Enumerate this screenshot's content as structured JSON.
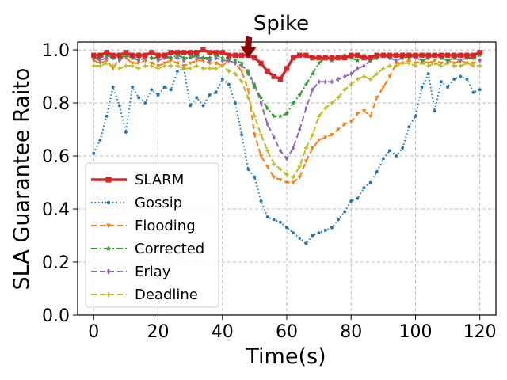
{
  "chart_data": {
    "type": "line",
    "title": "",
    "xlabel": "Time(s)",
    "ylabel": "SLA Guarantee Raito",
    "xlim": [
      -5,
      125
    ],
    "ylim": [
      0.0,
      1.03
    ],
    "xticks": [
      0,
      20,
      40,
      60,
      80,
      100,
      120
    ],
    "yticks": [
      0.0,
      0.2,
      0.4,
      0.6,
      0.8,
      1.0
    ],
    "xtick_labels": [
      "0",
      "20",
      "40",
      "60",
      "80",
      "100",
      "120"
    ],
    "ytick_labels": [
      "0.0",
      "0.2",
      "0.4",
      "0.6",
      "0.8",
      "1.0"
    ],
    "grid": true,
    "legend_position": "center-left",
    "annotation": {
      "text": "Spike",
      "x": 48,
      "y": 0.975
    },
    "series": [
      {
        "name": "SLARM",
        "color": "#d62728",
        "marker": "square",
        "dash": "solid",
        "x": [
          0,
          2,
          4,
          6,
          8,
          10,
          12,
          14,
          16,
          18,
          20,
          22,
          24,
          26,
          28,
          30,
          32,
          34,
          36,
          38,
          40,
          42,
          44,
          46,
          48,
          50,
          52,
          54,
          56,
          58,
          60,
          62,
          64,
          66,
          68,
          70,
          72,
          74,
          76,
          78,
          80,
          82,
          84,
          86,
          88,
          90,
          92,
          94,
          96,
          98,
          100,
          102,
          104,
          106,
          108,
          110,
          112,
          114,
          116,
          118,
          120
        ],
        "values": [
          0.98,
          0.98,
          0.99,
          0.98,
          0.98,
          0.99,
          0.98,
          0.98,
          0.98,
          0.99,
          0.98,
          0.98,
          0.99,
          0.99,
          0.99,
          0.99,
          0.99,
          1.0,
          0.99,
          0.99,
          0.99,
          0.98,
          0.98,
          0.98,
          0.98,
          0.97,
          0.95,
          0.92,
          0.9,
          0.89,
          0.93,
          0.97,
          0.98,
          0.98,
          0.97,
          0.97,
          0.97,
          0.97,
          0.97,
          0.97,
          0.98,
          0.98,
          0.97,
          0.97,
          0.98,
          0.98,
          0.98,
          0.98,
          0.98,
          0.98,
          0.98,
          0.98,
          0.98,
          0.98,
          0.98,
          0.98,
          0.98,
          0.98,
          0.98,
          0.98,
          0.99
        ]
      },
      {
        "name": "Gossip",
        "color": "#1f77b4",
        "marker": "dot",
        "dash": "dotted",
        "x": [
          0,
          2,
          4,
          6,
          8,
          10,
          12,
          14,
          16,
          18,
          20,
          22,
          24,
          26,
          28,
          30,
          32,
          34,
          36,
          38,
          40,
          42,
          44,
          46,
          48,
          50,
          52,
          54,
          56,
          58,
          60,
          62,
          64,
          66,
          68,
          70,
          72,
          74,
          76,
          78,
          80,
          82,
          84,
          86,
          88,
          90,
          92,
          94,
          96,
          98,
          100,
          102,
          104,
          106,
          108,
          110,
          112,
          114,
          116,
          118,
          120
        ],
        "values": [
          0.61,
          0.66,
          0.75,
          0.86,
          0.79,
          0.69,
          0.86,
          0.82,
          0.8,
          0.85,
          0.83,
          0.86,
          0.85,
          0.92,
          0.93,
          0.79,
          0.82,
          0.79,
          0.83,
          0.84,
          0.89,
          0.87,
          0.8,
          0.68,
          0.55,
          0.52,
          0.43,
          0.37,
          0.36,
          0.35,
          0.33,
          0.31,
          0.29,
          0.27,
          0.3,
          0.31,
          0.32,
          0.33,
          0.36,
          0.39,
          0.43,
          0.44,
          0.48,
          0.5,
          0.54,
          0.59,
          0.62,
          0.6,
          0.63,
          0.71,
          0.75,
          0.86,
          0.91,
          0.77,
          0.88,
          0.86,
          0.89,
          0.9,
          0.89,
          0.84,
          0.85
        ]
      },
      {
        "name": "Flooding",
        "color": "#ff7f0e",
        "marker": "triangle-down",
        "dash": "dashed",
        "x": [
          0,
          2,
          4,
          6,
          8,
          10,
          12,
          14,
          16,
          18,
          20,
          22,
          24,
          26,
          28,
          30,
          32,
          34,
          36,
          38,
          40,
          42,
          44,
          46,
          48,
          50,
          52,
          54,
          56,
          58,
          60,
          62,
          64,
          66,
          68,
          70,
          72,
          74,
          76,
          78,
          80,
          82,
          84,
          86,
          88,
          90,
          92,
          94,
          96,
          98,
          100,
          102,
          104,
          106,
          108,
          110,
          112,
          114,
          116,
          118,
          120
        ],
        "values": [
          0.96,
          0.95,
          0.96,
          0.93,
          0.97,
          0.97,
          0.95,
          0.95,
          0.96,
          0.95,
          0.94,
          0.95,
          0.96,
          0.95,
          0.94,
          0.95,
          0.96,
          0.96,
          0.95,
          0.95,
          0.94,
          0.96,
          0.95,
          0.92,
          0.85,
          0.68,
          0.6,
          0.56,
          0.52,
          0.51,
          0.5,
          0.5,
          0.52,
          0.58,
          0.63,
          0.66,
          0.67,
          0.68,
          0.7,
          0.72,
          0.73,
          0.76,
          0.77,
          0.75,
          0.82,
          0.86,
          0.9,
          0.95,
          0.95,
          0.96,
          0.95,
          0.96,
          0.95,
          0.96,
          0.95,
          0.96,
          0.95,
          0.96,
          0.95,
          0.95,
          0.96
        ]
      },
      {
        "name": "Corrected",
        "color": "#2ca02c",
        "marker": "star",
        "dash": "dashdot",
        "x": [
          0,
          2,
          4,
          6,
          8,
          10,
          12,
          14,
          16,
          18,
          20,
          22,
          24,
          26,
          28,
          30,
          32,
          34,
          36,
          38,
          40,
          42,
          44,
          46,
          48,
          50,
          52,
          54,
          56,
          58,
          60,
          62,
          64,
          66,
          68,
          70,
          72,
          74,
          76,
          78,
          80,
          82,
          84,
          86,
          88,
          90,
          92,
          94,
          96,
          98,
          100,
          102,
          104,
          106,
          108,
          110,
          112,
          114,
          116,
          118,
          120
        ],
        "values": [
          0.97,
          0.97,
          0.98,
          0.97,
          0.97,
          0.98,
          0.97,
          0.97,
          0.98,
          0.97,
          0.97,
          0.98,
          0.97,
          0.98,
          0.97,
          0.97,
          0.98,
          0.97,
          0.97,
          0.98,
          0.97,
          0.97,
          0.96,
          0.95,
          0.91,
          0.86,
          0.82,
          0.78,
          0.75,
          0.75,
          0.76,
          0.8,
          0.83,
          0.87,
          0.91,
          0.95,
          0.97,
          0.96,
          0.97,
          0.98,
          0.97,
          0.96,
          0.98,
          0.96,
          0.97,
          0.98,
          0.97,
          0.98,
          0.97,
          0.97,
          0.98,
          0.96,
          0.97,
          0.98,
          0.97,
          0.96,
          0.97,
          0.98,
          0.97,
          0.97,
          0.98
        ]
      },
      {
        "name": "Erlay",
        "color": "#9467bd",
        "marker": "diamond",
        "dash": "dashed",
        "x": [
          0,
          2,
          4,
          6,
          8,
          10,
          12,
          14,
          16,
          18,
          20,
          22,
          24,
          26,
          28,
          30,
          32,
          34,
          36,
          38,
          40,
          42,
          44,
          46,
          48,
          50,
          52,
          54,
          56,
          58,
          60,
          62,
          64,
          66,
          68,
          70,
          72,
          74,
          76,
          78,
          80,
          82,
          84,
          86,
          88,
          90,
          92,
          94,
          96,
          98,
          100,
          102,
          104,
          106,
          108,
          110,
          112,
          114,
          116,
          118,
          120
        ],
        "values": [
          0.97,
          0.96,
          0.97,
          0.97,
          0.96,
          0.98,
          0.97,
          0.96,
          0.97,
          0.97,
          0.96,
          0.97,
          0.97,
          0.97,
          0.96,
          0.98,
          0.97,
          0.97,
          0.96,
          0.97,
          0.96,
          0.96,
          0.95,
          0.94,
          0.92,
          0.87,
          0.8,
          0.72,
          0.67,
          0.62,
          0.59,
          0.63,
          0.7,
          0.78,
          0.85,
          0.88,
          0.88,
          0.88,
          0.89,
          0.9,
          0.91,
          0.93,
          0.94,
          0.96,
          0.97,
          0.98,
          0.97,
          0.96,
          0.97,
          0.98,
          0.97,
          0.96,
          0.97,
          0.98,
          0.97,
          0.96,
          0.97,
          0.96,
          0.97,
          0.97,
          0.96
        ]
      },
      {
        "name": "Deadline",
        "color": "#bcbd22",
        "marker": "plus",
        "dash": "dashed",
        "x": [
          0,
          2,
          4,
          6,
          8,
          10,
          12,
          14,
          16,
          18,
          20,
          22,
          24,
          26,
          28,
          30,
          32,
          34,
          36,
          38,
          40,
          42,
          44,
          46,
          48,
          50,
          52,
          54,
          56,
          58,
          60,
          62,
          64,
          66,
          68,
          70,
          72,
          74,
          76,
          78,
          80,
          82,
          84,
          86,
          88,
          90,
          92,
          94,
          96,
          98,
          100,
          102,
          104,
          106,
          108,
          110,
          112,
          114,
          116,
          118,
          120
        ],
        "values": [
          0.94,
          0.94,
          0.95,
          0.94,
          0.93,
          0.94,
          0.94,
          0.93,
          0.94,
          0.94,
          0.93,
          0.94,
          0.94,
          0.94,
          0.93,
          0.93,
          0.94,
          0.93,
          0.93,
          0.93,
          0.94,
          0.92,
          0.91,
          0.88,
          0.82,
          0.75,
          0.68,
          0.62,
          0.57,
          0.55,
          0.53,
          0.52,
          0.56,
          0.63,
          0.68,
          0.75,
          0.78,
          0.8,
          0.82,
          0.85,
          0.87,
          0.89,
          0.9,
          0.89,
          0.91,
          0.93,
          0.94,
          0.94,
          0.95,
          0.95,
          0.94,
          0.95,
          0.94,
          0.95,
          0.94,
          0.95,
          0.94,
          0.94,
          0.95,
          0.94,
          0.94
        ]
      }
    ]
  }
}
